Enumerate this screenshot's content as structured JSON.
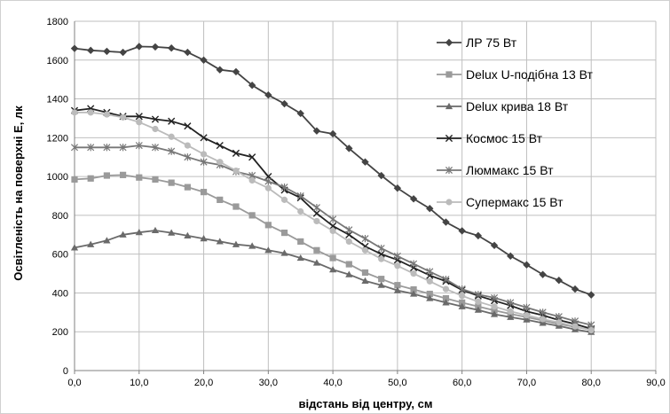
{
  "chart_data": {
    "type": "line",
    "title": "",
    "xlabel": "відстань від центру, см",
    "ylabel": "Освітленість на поверхні Е, лк",
    "xlim": [
      0,
      90
    ],
    "ylim": [
      0,
      1800
    ],
    "xticks": [
      "0,0",
      "10,0",
      "20,0",
      "30,0",
      "40,0",
      "50,0",
      "60,0",
      "70,0",
      "80,0",
      "90,0"
    ],
    "yticks": [
      "0",
      "200",
      "400",
      "600",
      "800",
      "1000",
      "1200",
      "1400",
      "1600",
      "1800"
    ],
    "grid": true,
    "legend_position": "top-right",
    "x": [
      0,
      2.5,
      5,
      7.5,
      10,
      12.5,
      15,
      17.5,
      20,
      22.5,
      25,
      27.5,
      30,
      32.5,
      35,
      37.5,
      40,
      42.5,
      45,
      47.5,
      50,
      52.5,
      55,
      57.5,
      60,
      62.5,
      65,
      67.5,
      70,
      72.5,
      75,
      77.5,
      80
    ],
    "series": [
      {
        "name": "ЛР 75 Вт",
        "color": "#444444",
        "marker": "diamond",
        "values": [
          1660,
          1650,
          1645,
          1640,
          1670,
          1668,
          1662,
          1640,
          1600,
          1550,
          1540,
          1470,
          1420,
          1375,
          1325,
          1235,
          1220,
          1145,
          1075,
          1005,
          940,
          885,
          835,
          765,
          720,
          695,
          645,
          590,
          545,
          495,
          465,
          420,
          390
        ]
      },
      {
        "name": "Delux U-подібна 13 Вт",
        "color": "#9a9a9a",
        "marker": "square",
        "values": [
          985,
          990,
          1005,
          1008,
          995,
          985,
          968,
          945,
          920,
          880,
          845,
          800,
          750,
          710,
          665,
          620,
          580,
          548,
          505,
          472,
          440,
          418,
          395,
          372,
          350,
          330,
          310,
          292,
          275,
          258,
          240,
          225,
          210
        ]
      },
      {
        "name": "Delux крива 18 Вт",
        "color": "#6a6a6a",
        "marker": "triangle",
        "values": [
          633,
          650,
          670,
          700,
          712,
          722,
          710,
          695,
          680,
          665,
          650,
          642,
          620,
          605,
          580,
          555,
          520,
          495,
          462,
          440,
          413,
          395,
          372,
          350,
          330,
          312,
          290,
          275,
          262,
          245,
          230,
          212,
          198
        ]
      },
      {
        "name": "Космос 15 Вт",
        "color": "#222222",
        "marker": "x",
        "values": [
          1340,
          1350,
          1330,
          1310,
          1310,
          1295,
          1285,
          1260,
          1200,
          1160,
          1120,
          1100,
          1000,
          930,
          890,
          810,
          745,
          700,
          640,
          600,
          570,
          530,
          490,
          460,
          415,
          385,
          360,
          335,
          305,
          285,
          260,
          240,
          215
        ]
      },
      {
        "name": "Люммакс 15 Вт",
        "color": "#777777",
        "marker": "star",
        "values": [
          1150,
          1150,
          1150,
          1150,
          1160,
          1150,
          1130,
          1100,
          1075,
          1060,
          1025,
          1005,
          975,
          945,
          900,
          840,
          780,
          725,
          680,
          630,
          590,
          550,
          510,
          470,
          420,
          392,
          375,
          350,
          325,
          300,
          278,
          255,
          235
        ]
      },
      {
        "name": "Супермакс 15 Вт",
        "color": "#bbbbbb",
        "marker": "circle",
        "values": [
          1330,
          1330,
          1320,
          1305,
          1280,
          1245,
          1205,
          1160,
          1115,
          1075,
          1030,
          980,
          940,
          880,
          820,
          770,
          720,
          665,
          620,
          575,
          540,
          500,
          460,
          420,
          385,
          355,
          330,
          305,
          285,
          265,
          248,
          228,
          208
        ]
      }
    ]
  }
}
